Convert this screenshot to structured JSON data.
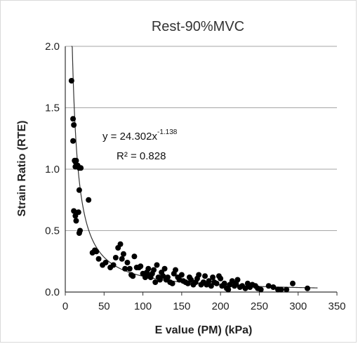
{
  "chart_data": {
    "type": "scatter",
    "title": "Rest-90%MVC",
    "xlabel": "E value  (PM) (kPa)",
    "ylabel": "Strain Ratio (RTE)",
    "xlim": [
      0,
      350
    ],
    "ylim": [
      0,
      2.0
    ],
    "x_ticks": [
      "0",
      "50",
      "100",
      "150",
      "200",
      "250",
      "300",
      "350"
    ],
    "y_ticks": [
      "0.0",
      "0.5",
      "1.0",
      "1.5",
      "2.0"
    ],
    "grid": "horizontal",
    "legend": "none",
    "marker_color": "#000000",
    "trendline": {
      "type": "power",
      "a": 24.302,
      "b": -1.138,
      "x_range": [
        8,
        325
      ],
      "equation_prefix": "y = 24.302x",
      "equation_exponent": "-1.138",
      "r2_text": "R² = 0.828"
    },
    "points": [
      [
        8,
        1.72
      ],
      [
        10,
        1.41
      ],
      [
        11,
        1.36
      ],
      [
        10,
        1.23
      ],
      [
        12,
        1.07
      ],
      [
        13,
        1.06
      ],
      [
        14,
        1.07
      ],
      [
        13,
        1.02
      ],
      [
        16,
        1.03
      ],
      [
        18,
        1.01
      ],
      [
        20,
        1.01
      ],
      [
        18,
        0.83
      ],
      [
        11,
        0.66
      ],
      [
        13,
        0.62
      ],
      [
        14,
        0.58
      ],
      [
        17,
        0.65
      ],
      [
        19,
        0.5
      ],
      [
        18,
        0.48
      ],
      [
        30,
        0.75
      ],
      [
        35,
        0.32
      ],
      [
        38,
        0.34
      ],
      [
        40,
        0.33
      ],
      [
        43,
        0.27
      ],
      [
        48,
        0.22
      ],
      [
        52,
        0.24
      ],
      [
        58,
        0.2
      ],
      [
        62,
        0.22
      ],
      [
        65,
        0.28
      ],
      [
        68,
        0.36
      ],
      [
        71,
        0.39
      ],
      [
        73,
        0.27
      ],
      [
        75,
        0.31
      ],
      [
        77,
        0.19
      ],
      [
        80,
        0.24
      ],
      [
        83,
        0.19
      ],
      [
        85,
        0.14
      ],
      [
        87,
        0.13
      ],
      [
        89,
        0.29
      ],
      [
        92,
        0.2
      ],
      [
        95,
        0.2
      ],
      [
        97,
        0.21
      ],
      [
        100,
        0.15
      ],
      [
        103,
        0.12
      ],
      [
        105,
        0.16
      ],
      [
        107,
        0.19
      ],
      [
        108,
        0.13
      ],
      [
        110,
        0.12
      ],
      [
        112,
        0.15
      ],
      [
        114,
        0.18
      ],
      [
        116,
        0.08
      ],
      [
        118,
        0.22
      ],
      [
        120,
        0.12
      ],
      [
        122,
        0.1
      ],
      [
        124,
        0.16
      ],
      [
        126,
        0.13
      ],
      [
        128,
        0.19
      ],
      [
        130,
        0.1
      ],
      [
        132,
        0.12
      ],
      [
        135,
        0.08
      ],
      [
        138,
        0.07
      ],
      [
        140,
        0.15
      ],
      [
        142,
        0.18
      ],
      [
        145,
        0.12
      ],
      [
        147,
        0.1
      ],
      [
        150,
        0.14
      ],
      [
        152,
        0.09
      ],
      [
        155,
        0.08
      ],
      [
        158,
        0.07
      ],
      [
        160,
        0.12
      ],
      [
        162,
        0.1
      ],
      [
        165,
        0.06
      ],
      [
        168,
        0.08
      ],
      [
        170,
        0.11
      ],
      [
        172,
        0.14
      ],
      [
        175,
        0.06
      ],
      [
        178,
        0.08
      ],
      [
        180,
        0.13
      ],
      [
        182,
        0.06
      ],
      [
        185,
        0.09
      ],
      [
        188,
        0.05
      ],
      [
        190,
        0.12
      ],
      [
        192,
        0.08
      ],
      [
        195,
        0.07
      ],
      [
        198,
        0.13
      ],
      [
        200,
        0.11
      ],
      [
        202,
        0.05
      ],
      [
        205,
        0.07
      ],
      [
        208,
        0.03
      ],
      [
        210,
        0.02
      ],
      [
        212,
        0.06
      ],
      [
        215,
        0.09
      ],
      [
        218,
        0.05
      ],
      [
        220,
        0.07
      ],
      [
        222,
        0.1
      ],
      [
        225,
        0.04
      ],
      [
        228,
        0.05
      ],
      [
        232,
        0.03
      ],
      [
        235,
        0.07
      ],
      [
        238,
        0.04
      ],
      [
        241,
        0.06
      ],
      [
        245,
        0.05
      ],
      [
        248,
        0.03
      ],
      [
        252,
        0.02
      ],
      [
        262,
        0.05
      ],
      [
        268,
        0.04
      ],
      [
        274,
        0.02
      ],
      [
        278,
        0.02
      ],
      [
        285,
        0.02
      ],
      [
        293,
        0.07
      ],
      [
        312,
        0.03
      ]
    ]
  }
}
